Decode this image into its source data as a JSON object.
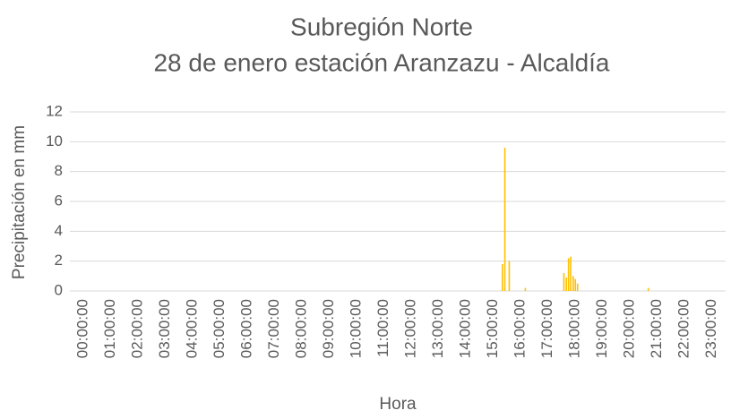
{
  "chart_data": {
    "type": "bar",
    "title": "Subregión Norte",
    "subtitle": "28 de enero estación Aranzazu - Alcaldía",
    "x_label": "Hora",
    "y_label": "Precipitación en mm",
    "x": [
      15.33,
      15.42,
      15.58,
      16.17,
      17.58,
      17.67,
      17.75,
      17.83,
      17.92,
      18.0,
      18.08,
      20.67
    ],
    "values": [
      1.8,
      9.6,
      2.0,
      0.2,
      1.2,
      0.9,
      2.2,
      2.3,
      1.0,
      0.8,
      0.5,
      0.2
    ],
    "color": "#ffc000",
    "xlim": [
      -0.5,
      23.5
    ],
    "xticks": [
      {
        "value": 0,
        "label": "00:00:00"
      },
      {
        "value": 1,
        "label": "01:00:00"
      },
      {
        "value": 2,
        "label": "02:00:00"
      },
      {
        "value": 3,
        "label": "03:00:00"
      },
      {
        "value": 4,
        "label": "04:00:00"
      },
      {
        "value": 5,
        "label": "05:00:00"
      },
      {
        "value": 6,
        "label": "06:00:00"
      },
      {
        "value": 7,
        "label": "07:00:00"
      },
      {
        "value": 8,
        "label": "08:00:00"
      },
      {
        "value": 9,
        "label": "09:00:00"
      },
      {
        "value": 10,
        "label": "10:00:00"
      },
      {
        "value": 11,
        "label": "11:00:00"
      },
      {
        "value": 12,
        "label": "12:00:00"
      },
      {
        "value": 13,
        "label": "13:00:00"
      },
      {
        "value": 14,
        "label": "14:00:00"
      },
      {
        "value": 15,
        "label": "15:00:00"
      },
      {
        "value": 16,
        "label": "16:00:00"
      },
      {
        "value": 17,
        "label": "17:00:00"
      },
      {
        "value": 18,
        "label": "18:00:00"
      },
      {
        "value": 19,
        "label": "19:00:00"
      },
      {
        "value": 20,
        "label": "20:00:00"
      },
      {
        "value": 21,
        "label": "21:00:00"
      },
      {
        "value": 22,
        "label": "22:00:00"
      },
      {
        "value": 23,
        "label": "23:00:00"
      }
    ],
    "ylim": [
      0,
      12
    ],
    "yticks": [
      0,
      2,
      4,
      6,
      8,
      10,
      12
    ],
    "grid": true
  }
}
